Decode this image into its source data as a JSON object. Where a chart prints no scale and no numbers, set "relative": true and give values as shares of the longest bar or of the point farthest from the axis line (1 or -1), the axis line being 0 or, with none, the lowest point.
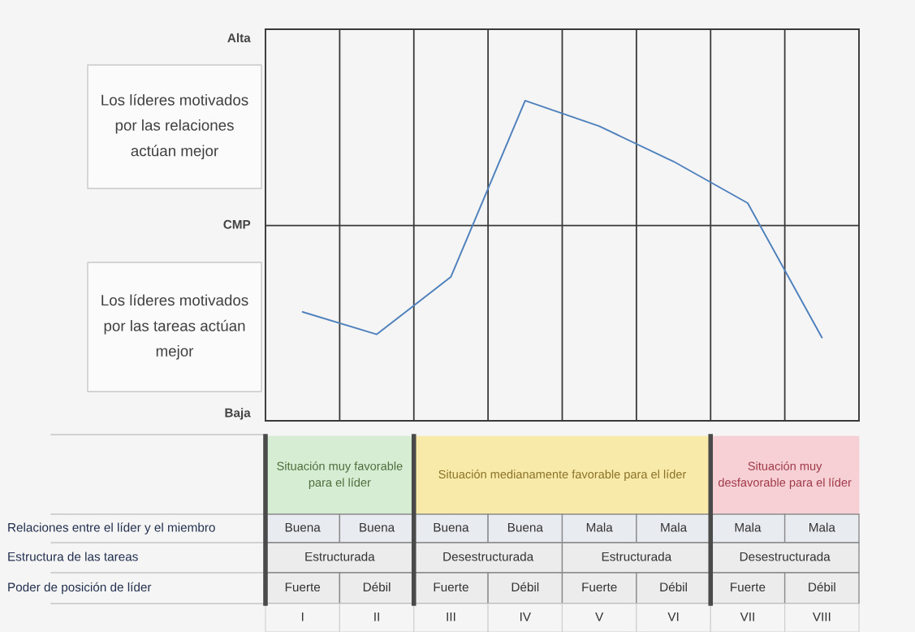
{
  "chart_data": {
    "type": "line",
    "relative": true,
    "grid": "x",
    "categories": [
      "I",
      "II",
      "III",
      "IV",
      "V",
      "VI",
      "VII",
      "VIII"
    ],
    "series": [
      {
        "color": "#4f81bd",
        "values": [
          0.34,
          0.27,
          0.45,
          1.0,
          0.92,
          0.81,
          0.68,
          0.26
        ]
      }
    ],
    "ref_lines": [
      {
        "axis": "y",
        "value": 0.61,
        "label": "CMP",
        "color": "#3a3a3a"
      }
    ],
    "annotations": [
      "Alta",
      "Baja",
      "Los líderes motivados\npor las relaciones\nactúan mejor",
      "Los líderes motivados\npor las tareas actúan\nmejor",
      "Situación muy favorable\npara el líder",
      "Situación medianamente favorable para el líder",
      "Situación muy\ndesfavorable para el líder",
      "Relaciones entre el líder y el miembro",
      "Estructura de las tareas",
      "Poder de posición de líder",
      "Buena",
      "Buena",
      "Buena",
      "Buena",
      "Mala",
      "Mala",
      "Mala",
      "Mala",
      "Estructurada",
      "Desestructurada",
      "Estructurada",
      "Desestructurada",
      "Fuerte",
      "Débil",
      "Fuerte",
      "Débil",
      "Fuerte",
      "Débil",
      "Fuerte",
      "Débil"
    ]
  }
}
